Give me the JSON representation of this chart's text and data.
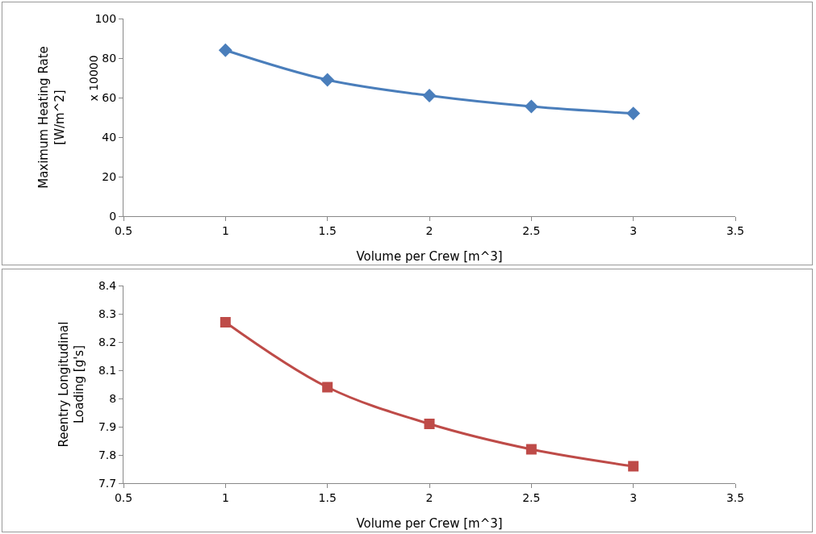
{
  "chart_data": [
    {
      "type": "line",
      "xlabel": "Volume per Crew [m^3]",
      "ylabel": "Maximum Heating Rate\n[W/m^2]",
      "annotations": [
        "x 10000"
      ],
      "x": [
        1,
        1.5,
        2,
        2.5,
        3
      ],
      "series": [
        {
          "color": "#4a7ebb",
          "values": [
            84,
            69,
            61,
            55.5,
            52
          ]
        }
      ],
      "xlim": [
        0.5,
        3.5
      ],
      "xticks": [
        0.5,
        1,
        1.5,
        2,
        2.5,
        3,
        3.5
      ],
      "ylim": [
        0,
        100
      ],
      "yticks": [
        0,
        20,
        40,
        60,
        80,
        100
      ],
      "grid": false,
      "marker": "diamond",
      "line_style": "solid"
    },
    {
      "type": "line",
      "xlabel": "Volume per Crew [m^3]",
      "ylabel": "Reentry Longitudinal\nLoading [g's]",
      "x": [
        1,
        1.5,
        2,
        2.5,
        3
      ],
      "series": [
        {
          "color": "#be4b48",
          "values": [
            8.27,
            8.04,
            7.91,
            7.82,
            7.76
          ]
        }
      ],
      "xlim": [
        0.5,
        3.5
      ],
      "xticks": [
        0.5,
        1,
        1.5,
        2,
        2.5,
        3,
        3.5
      ],
      "ylim": [
        7.7,
        8.4
      ],
      "yticks": [
        7.7,
        7.8,
        7.9,
        8,
        8.1,
        8.2,
        8.3,
        8.4
      ],
      "grid": false,
      "marker": "square",
      "line_style": "solid"
    }
  ]
}
